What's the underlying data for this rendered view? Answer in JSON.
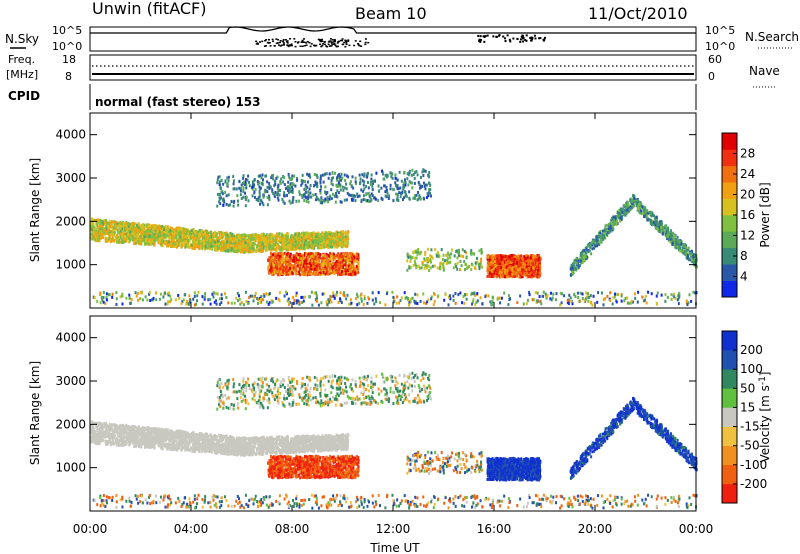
{
  "header": {
    "title": "Unwin (fitACF)",
    "beam": "Beam 10",
    "date": "11/Oct/2010"
  },
  "summary_panels": {
    "nsky_label": "N.Sky",
    "nsky_ticks": [
      "10^5",
      "10^0"
    ],
    "nsearch_label": "N.Search",
    "nsearch_ticks": [
      "10^5",
      "10^0"
    ],
    "freq_label": "Freq.",
    "freq_unit": "[MHz]",
    "freq_ticks": [
      "18",
      "8"
    ],
    "nave_label": "Nave",
    "nave_ticks": [
      "60",
      "0"
    ],
    "cpid_label": "CPID",
    "cpid_value": "normal (fast stereo) 153"
  },
  "axes": {
    "ylabel": "Slant Range [km]",
    "xlabel": "Time UT",
    "x_ticks": [
      "00:00",
      "04:00",
      "08:00",
      "12:00",
      "16:00",
      "20:00",
      "00:00"
    ],
    "y_ticks": [
      "1000",
      "2000",
      "3000",
      "4000"
    ]
  },
  "colorbars": {
    "power": {
      "label": "Power [dB]",
      "ticks": [
        "4",
        "8",
        "12",
        "16",
        "20",
        "24",
        "28"
      ],
      "colors": [
        "#1028e8",
        "#2a58a8",
        "#3a8a78",
        "#5aaa58",
        "#80c040",
        "#d8c020",
        "#f0a010",
        "#f07010",
        "#f03010",
        "#e00000"
      ]
    },
    "velocity": {
      "label": "Velocity [m s",
      "label_sup": "-1",
      "label_tail": "]",
      "ticks": [
        "200",
        "100",
        "50",
        "15",
        "-15",
        "-50",
        "-100",
        "-200"
      ],
      "colors": [
        "#1030d0",
        "#2050b0",
        "#308860",
        "#60c040",
        "#c8c8c0",
        "#f0c040",
        "#f09020",
        "#f06010",
        "#f02010"
      ]
    }
  },
  "chart_data": [
    {
      "type": "heatmap",
      "panel": "power",
      "x_unit": "hours UT",
      "y_unit": "km",
      "xlim": [
        0,
        24
      ],
      "ylim": [
        0,
        4500
      ],
      "zlim": [
        0,
        32
      ],
      "regions": [
        {
          "feature": "main band",
          "t_start": 0,
          "t_end": 10,
          "range_start_km": 1900,
          "range_end_km": 1500,
          "power_db": 20
        },
        {
          "feature": "upper patch",
          "t_start": 5,
          "t_end": 13.5,
          "range_start_km": 2600,
          "range_end_km": 3200,
          "power_db": 6
        },
        {
          "feature": "near echoes",
          "t_start": 7,
          "t_end": 10.5,
          "range_start_km": 800,
          "range_end_km": 1300,
          "power_db": 28
        },
        {
          "feature": "16-18 UT echo",
          "t_start": 15.7,
          "t_end": 17.8,
          "range_start_km": 800,
          "range_end_km": 1300,
          "power_db": 29
        },
        {
          "feature": "evening arc",
          "t_start": 19,
          "t_end": 24,
          "range_start_km": 900,
          "range_end_km": 2600,
          "power_db": 10
        }
      ]
    },
    {
      "type": "heatmap",
      "panel": "velocity",
      "x_unit": "hours UT",
      "y_unit": "km",
      "xlim": [
        0,
        24
      ],
      "ylim": [
        0,
        4500
      ],
      "zlim": [
        -250,
        250
      ],
      "regions": [
        {
          "feature": "main band (ground scatter)",
          "t_start": 0,
          "t_end": 10,
          "velocity": 0
        },
        {
          "feature": "near echoes",
          "t_start": 7,
          "t_end": 10.5,
          "velocity": -150
        },
        {
          "feature": "16-18 UT echo",
          "t_start": 15.7,
          "t_end": 17.8,
          "velocity": 120
        },
        {
          "feature": "evening arc",
          "t_start": 19,
          "t_end": 24,
          "velocity": 150
        }
      ]
    }
  ]
}
